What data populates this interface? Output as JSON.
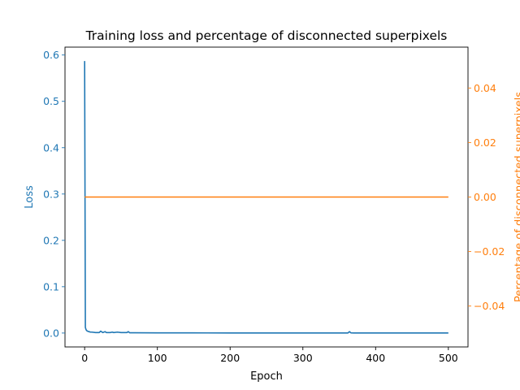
{
  "colors": {
    "loss": "#1f77b4",
    "percent": "#ff7f0e",
    "axis": "#000000"
  },
  "chart_data": {
    "type": "line",
    "title": "Training loss and percentage of disconnected superpixels",
    "xlabel": "Epoch",
    "ylabel_left": "Loss",
    "ylabel_right": "Percentage of disconnected superpixels",
    "xlim": [
      -27,
      527
    ],
    "ylim_left": [
      -0.03,
      0.617
    ],
    "ylim_right": [
      -0.055,
      0.055
    ],
    "grid": false,
    "legend": "none",
    "x_ticks": [
      0,
      100,
      200,
      300,
      400,
      500
    ],
    "x_tick_labels": [
      "0",
      "100",
      "200",
      "300",
      "400",
      "500"
    ],
    "y_left_ticks": [
      0.0,
      0.1,
      0.2,
      0.3,
      0.4,
      0.5,
      0.6
    ],
    "y_left_tick_labels": [
      "0.0",
      "0.1",
      "0.2",
      "0.3",
      "0.4",
      "0.5",
      "0.6"
    ],
    "y_right_ticks": [
      0.04,
      0.02,
      0.0,
      -0.02,
      -0.04
    ],
    "y_right_tick_labels": [
      "0.04",
      "0.02",
      "0.00",
      "−0.02",
      "−0.04"
    ],
    "series": [
      {
        "axis": "left",
        "x": [
          0,
          1,
          2,
          3,
          4,
          6,
          8,
          10,
          15,
          20,
          22,
          25,
          28,
          30,
          35,
          38,
          40,
          45,
          50,
          55,
          58,
          60,
          62,
          70,
          100,
          150,
          200,
          250,
          300,
          350,
          362,
          364,
          366,
          370,
          400,
          450,
          500
        ],
        "values": [
          0.587,
          0.012,
          0.007,
          0.005,
          0.004,
          0.003,
          0.002,
          0.002,
          0.001,
          0.001,
          0.004,
          0.001,
          0.003,
          0.001,
          0.001,
          0.002,
          0.001,
          0.002,
          0.001,
          0.001,
          0.001,
          0.003,
          0.0005,
          0.0005,
          0.0003,
          0.0003,
          0.0002,
          0.0002,
          0.0002,
          0.0002,
          0.0002,
          0.003,
          0.0004,
          0.0002,
          0.0002,
          0.0002,
          0.0001
        ]
      },
      {
        "axis": "right",
        "x": [
          0,
          500
        ],
        "values": [
          0.0,
          0.0
        ]
      }
    ]
  }
}
